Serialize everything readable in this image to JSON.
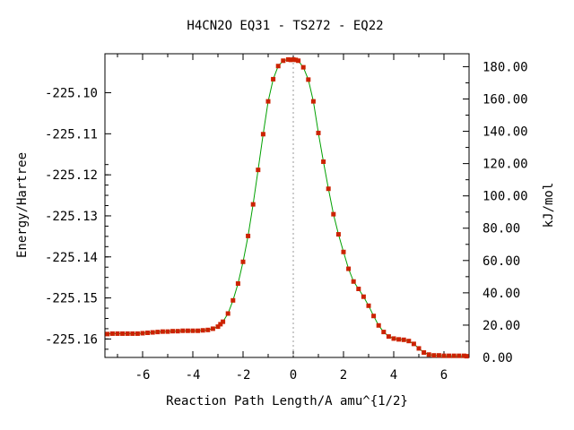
{
  "chart_data": {
    "type": "line",
    "title": "H4CN2O   EQ31 - TS272 - EQ22",
    "xlabel": "Reaction Path Length/A amu^{1/2}",
    "ylabel": "Energy/Hartree",
    "y2label": "kJ/mol",
    "xlim": [
      -7.5,
      7.0
    ],
    "ylim": [
      -225.1645,
      -225.0905
    ],
    "y2lim": [
      0.0,
      188.0
    ],
    "x_ticks": [
      -6,
      -4,
      -2,
      0,
      2,
      4,
      6
    ],
    "x_tick_labels": [
      "-6",
      "-4",
      "-2",
      "0",
      "2",
      "4",
      "6"
    ],
    "y_ticks": [
      -225.1,
      -225.11,
      -225.12,
      -225.13,
      -225.14,
      -225.15,
      -225.16
    ],
    "y_tick_labels": [
      "-225.10",
      "-225.11",
      "-225.12",
      "-225.13",
      "-225.14",
      "-225.15",
      "-225.16"
    ],
    "y2_ticks": [
      0,
      20,
      40,
      60,
      80,
      100,
      120,
      140,
      160,
      180
    ],
    "y2_tick_labels": [
      "0.00",
      "20.00",
      "40.00",
      "60.00",
      "80.00",
      "100.00",
      "120.00",
      "140.00",
      "160.00",
      "180.00"
    ],
    "ts_marker_x": 0,
    "grid": false,
    "legend": "none",
    "series": [
      {
        "line_color": "#00a000",
        "marker_color": "#cc2200",
        "x": [
          -7.4,
          -7.2,
          -7.0,
          -6.8,
          -6.6,
          -6.4,
          -6.2,
          -6.0,
          -5.8,
          -5.6,
          -5.4,
          -5.2,
          -5.0,
          -4.8,
          -4.6,
          -4.4,
          -4.2,
          -4.0,
          -3.8,
          -3.6,
          -3.4,
          -3.2,
          -3.0,
          -2.9,
          -2.8,
          -2.6,
          -2.4,
          -2.2,
          -2.0,
          -1.8,
          -1.6,
          -1.4,
          -1.2,
          -1.0,
          -0.8,
          -0.6,
          -0.4,
          -0.2,
          -0.1,
          0.0,
          0.1,
          0.2,
          0.4,
          0.6,
          0.8,
          1.0,
          1.2,
          1.4,
          1.6,
          1.8,
          2.0,
          2.2,
          2.4,
          2.6,
          2.8,
          3.0,
          3.2,
          3.4,
          3.6,
          3.8,
          4.0,
          4.2,
          4.4,
          4.6,
          4.8,
          5.0,
          5.2,
          5.4,
          5.6,
          5.8,
          6.0,
          6.2,
          6.4,
          6.6,
          6.8,
          6.9
        ],
        "y": [
          -225.1588,
          -225.1587,
          -225.1587,
          -225.1587,
          -225.1587,
          -225.1587,
          -225.1587,
          -225.1586,
          -225.1585,
          -225.1584,
          -225.1583,
          -225.1582,
          -225.1582,
          -225.1581,
          -225.1581,
          -225.158,
          -225.158,
          -225.158,
          -225.158,
          -225.1579,
          -225.1578,
          -225.1575,
          -225.157,
          -225.1564,
          -225.1558,
          -225.1538,
          -225.1506,
          -225.1465,
          -225.1412,
          -225.1349,
          -225.1272,
          -225.1188,
          -225.1101,
          -225.1021,
          -225.0967,
          -225.0935,
          -225.0922,
          -225.0919,
          -225.092,
          -225.0919,
          -225.092,
          -225.0922,
          -225.0938,
          -225.0968,
          -225.1021,
          -225.1098,
          -225.1168,
          -225.1234,
          -225.1296,
          -225.1345,
          -225.1388,
          -225.1429,
          -225.146,
          -225.1478,
          -225.1497,
          -225.1519,
          -225.1544,
          -225.1567,
          -225.1583,
          -225.1594,
          -225.1599,
          -225.1601,
          -225.1602,
          -225.1605,
          -225.1612,
          -225.1623,
          -225.1633,
          -225.1638,
          -225.164,
          -225.164,
          -225.1641,
          -225.1641,
          -225.1641,
          -225.1641,
          -225.1641,
          -225.1642
        ]
      }
    ]
  }
}
